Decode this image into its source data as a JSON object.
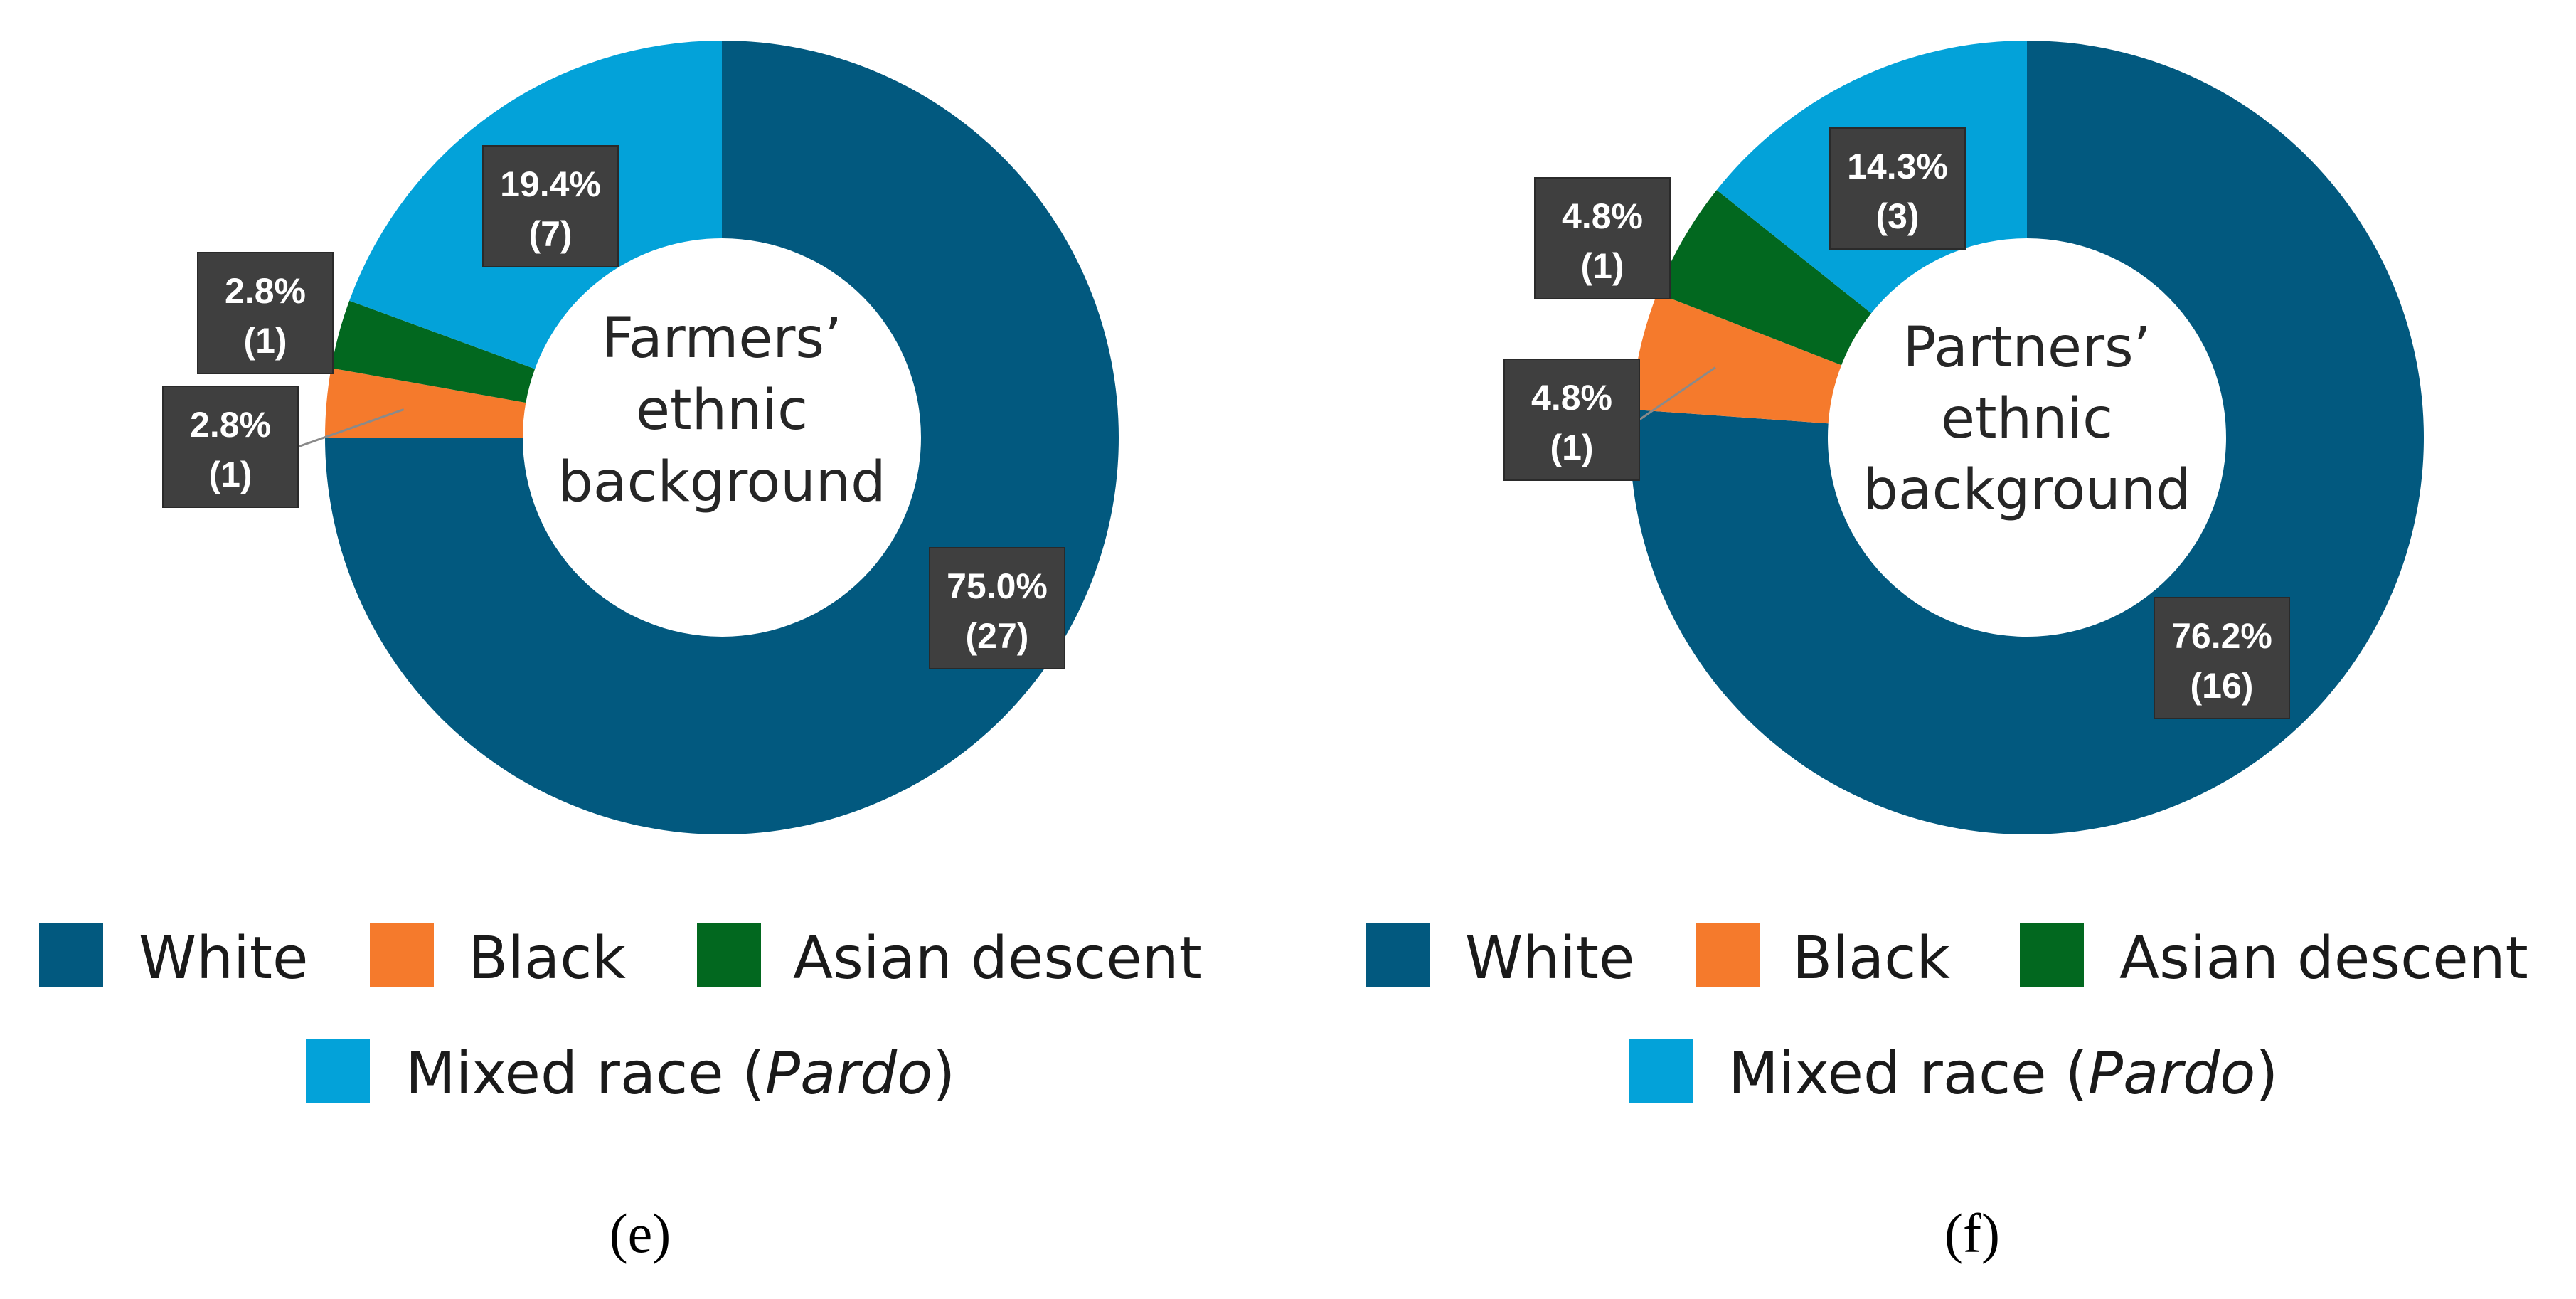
{
  "colors": {
    "White": "#02597F",
    "Black": "#F57A2C",
    "Asian descent": "#02681F",
    "Mixed race": "#03A2D9",
    "label_box": "#3F3F3F"
  },
  "chart_data": [
    {
      "type": "pie",
      "variant": "donut",
      "panel": "(e)",
      "center_label": [
        "Farmers’",
        "ethnic",
        "background"
      ],
      "legend_placement": "bottom",
      "slices": [
        {
          "category": "White",
          "percent": 75.0,
          "count": 27,
          "label_pct": "75.0%",
          "label_count": "(27)"
        },
        {
          "category": "Black",
          "percent": 2.8,
          "count": 1,
          "label_pct": "2.8%",
          "label_count": "(1)"
        },
        {
          "category": "Asian descent",
          "percent": 2.8,
          "count": 1,
          "label_pct": "2.8%",
          "label_count": "(1)"
        },
        {
          "category": "Mixed race (Pardo)",
          "percent": 19.4,
          "count": 7,
          "label_pct": "19.4%",
          "label_count": "(7)"
        }
      ]
    },
    {
      "type": "pie",
      "variant": "donut",
      "panel": "(f)",
      "center_label": [
        "Partners’",
        "ethnic",
        "background"
      ],
      "legend_placement": "bottom",
      "slices": [
        {
          "category": "White",
          "percent": 76.2,
          "count": 16,
          "label_pct": "76.2%",
          "label_count": "(16)"
        },
        {
          "category": "Black",
          "percent": 4.8,
          "count": 1,
          "label_pct": "4.8%",
          "label_count": "(1)"
        },
        {
          "category": "Asian descent",
          "percent": 4.8,
          "count": 1,
          "label_pct": "4.8%",
          "label_count": "(1)"
        },
        {
          "category": "Mixed race (Pardo)",
          "percent": 14.3,
          "count": 3,
          "label_pct": "14.3%",
          "label_count": "(3)"
        }
      ]
    }
  ],
  "legend": {
    "row1": [
      "White",
      "Black",
      "Asian descent"
    ],
    "mixed_prefix": "Mixed race (",
    "mixed_italic": "Pardo",
    "mixed_suffix": ")"
  }
}
